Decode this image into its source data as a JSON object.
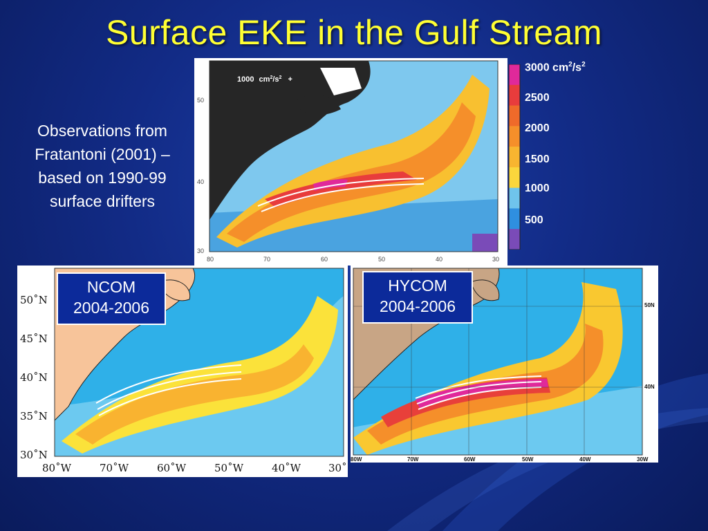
{
  "slide": {
    "title": "Surface EKE in the Gulf Stream",
    "observations_text": "Observations from Fratantoni (2001) – based on 1990-99 surface drifters"
  },
  "obs_map": {
    "scale_label": "1000",
    "scale_unit": "cm",
    "scale_unit_exp": "2",
    "scale_unit_tail": "/s",
    "scale_unit_tail_exp": "2",
    "scale_mark": "+",
    "lat_ticks": [
      "50",
      "40",
      "30"
    ],
    "lon_ticks": [
      "80",
      "70",
      "60",
      "50",
      "40",
      "30"
    ]
  },
  "colorbar": {
    "top_label_value": "3000 cm",
    "top_label_exp1": "2",
    "top_label_mid": "/s",
    "top_label_exp2": "2",
    "labels": [
      "2500",
      "2000",
      "1500",
      "1000",
      "500"
    ],
    "colors": [
      "#e0299a",
      "#e83c3c",
      "#ef6a2a",
      "#f58f2a",
      "#f8b530",
      "#fbd63c",
      "#6fc4ec",
      "#2f8fe0",
      "#7a4bb8"
    ]
  },
  "ncom": {
    "label_line1": "NCOM",
    "label_line2": "2004-2006",
    "lat_labels": [
      "50˚N",
      "45˚N",
      "40˚N",
      "35˚N",
      "30˚N"
    ],
    "lon_labels": [
      "80˚W",
      "70˚W",
      "60˚W",
      "50˚W",
      "40˚W",
      "30˚"
    ]
  },
  "hycom": {
    "label_line1": "HYCOM",
    "label_line2": "2004-2006",
    "lat_labels": [
      "50N",
      "40N"
    ],
    "lon_labels": [
      "80W",
      "70W",
      "60W",
      "50W",
      "40W",
      "30W"
    ]
  }
}
